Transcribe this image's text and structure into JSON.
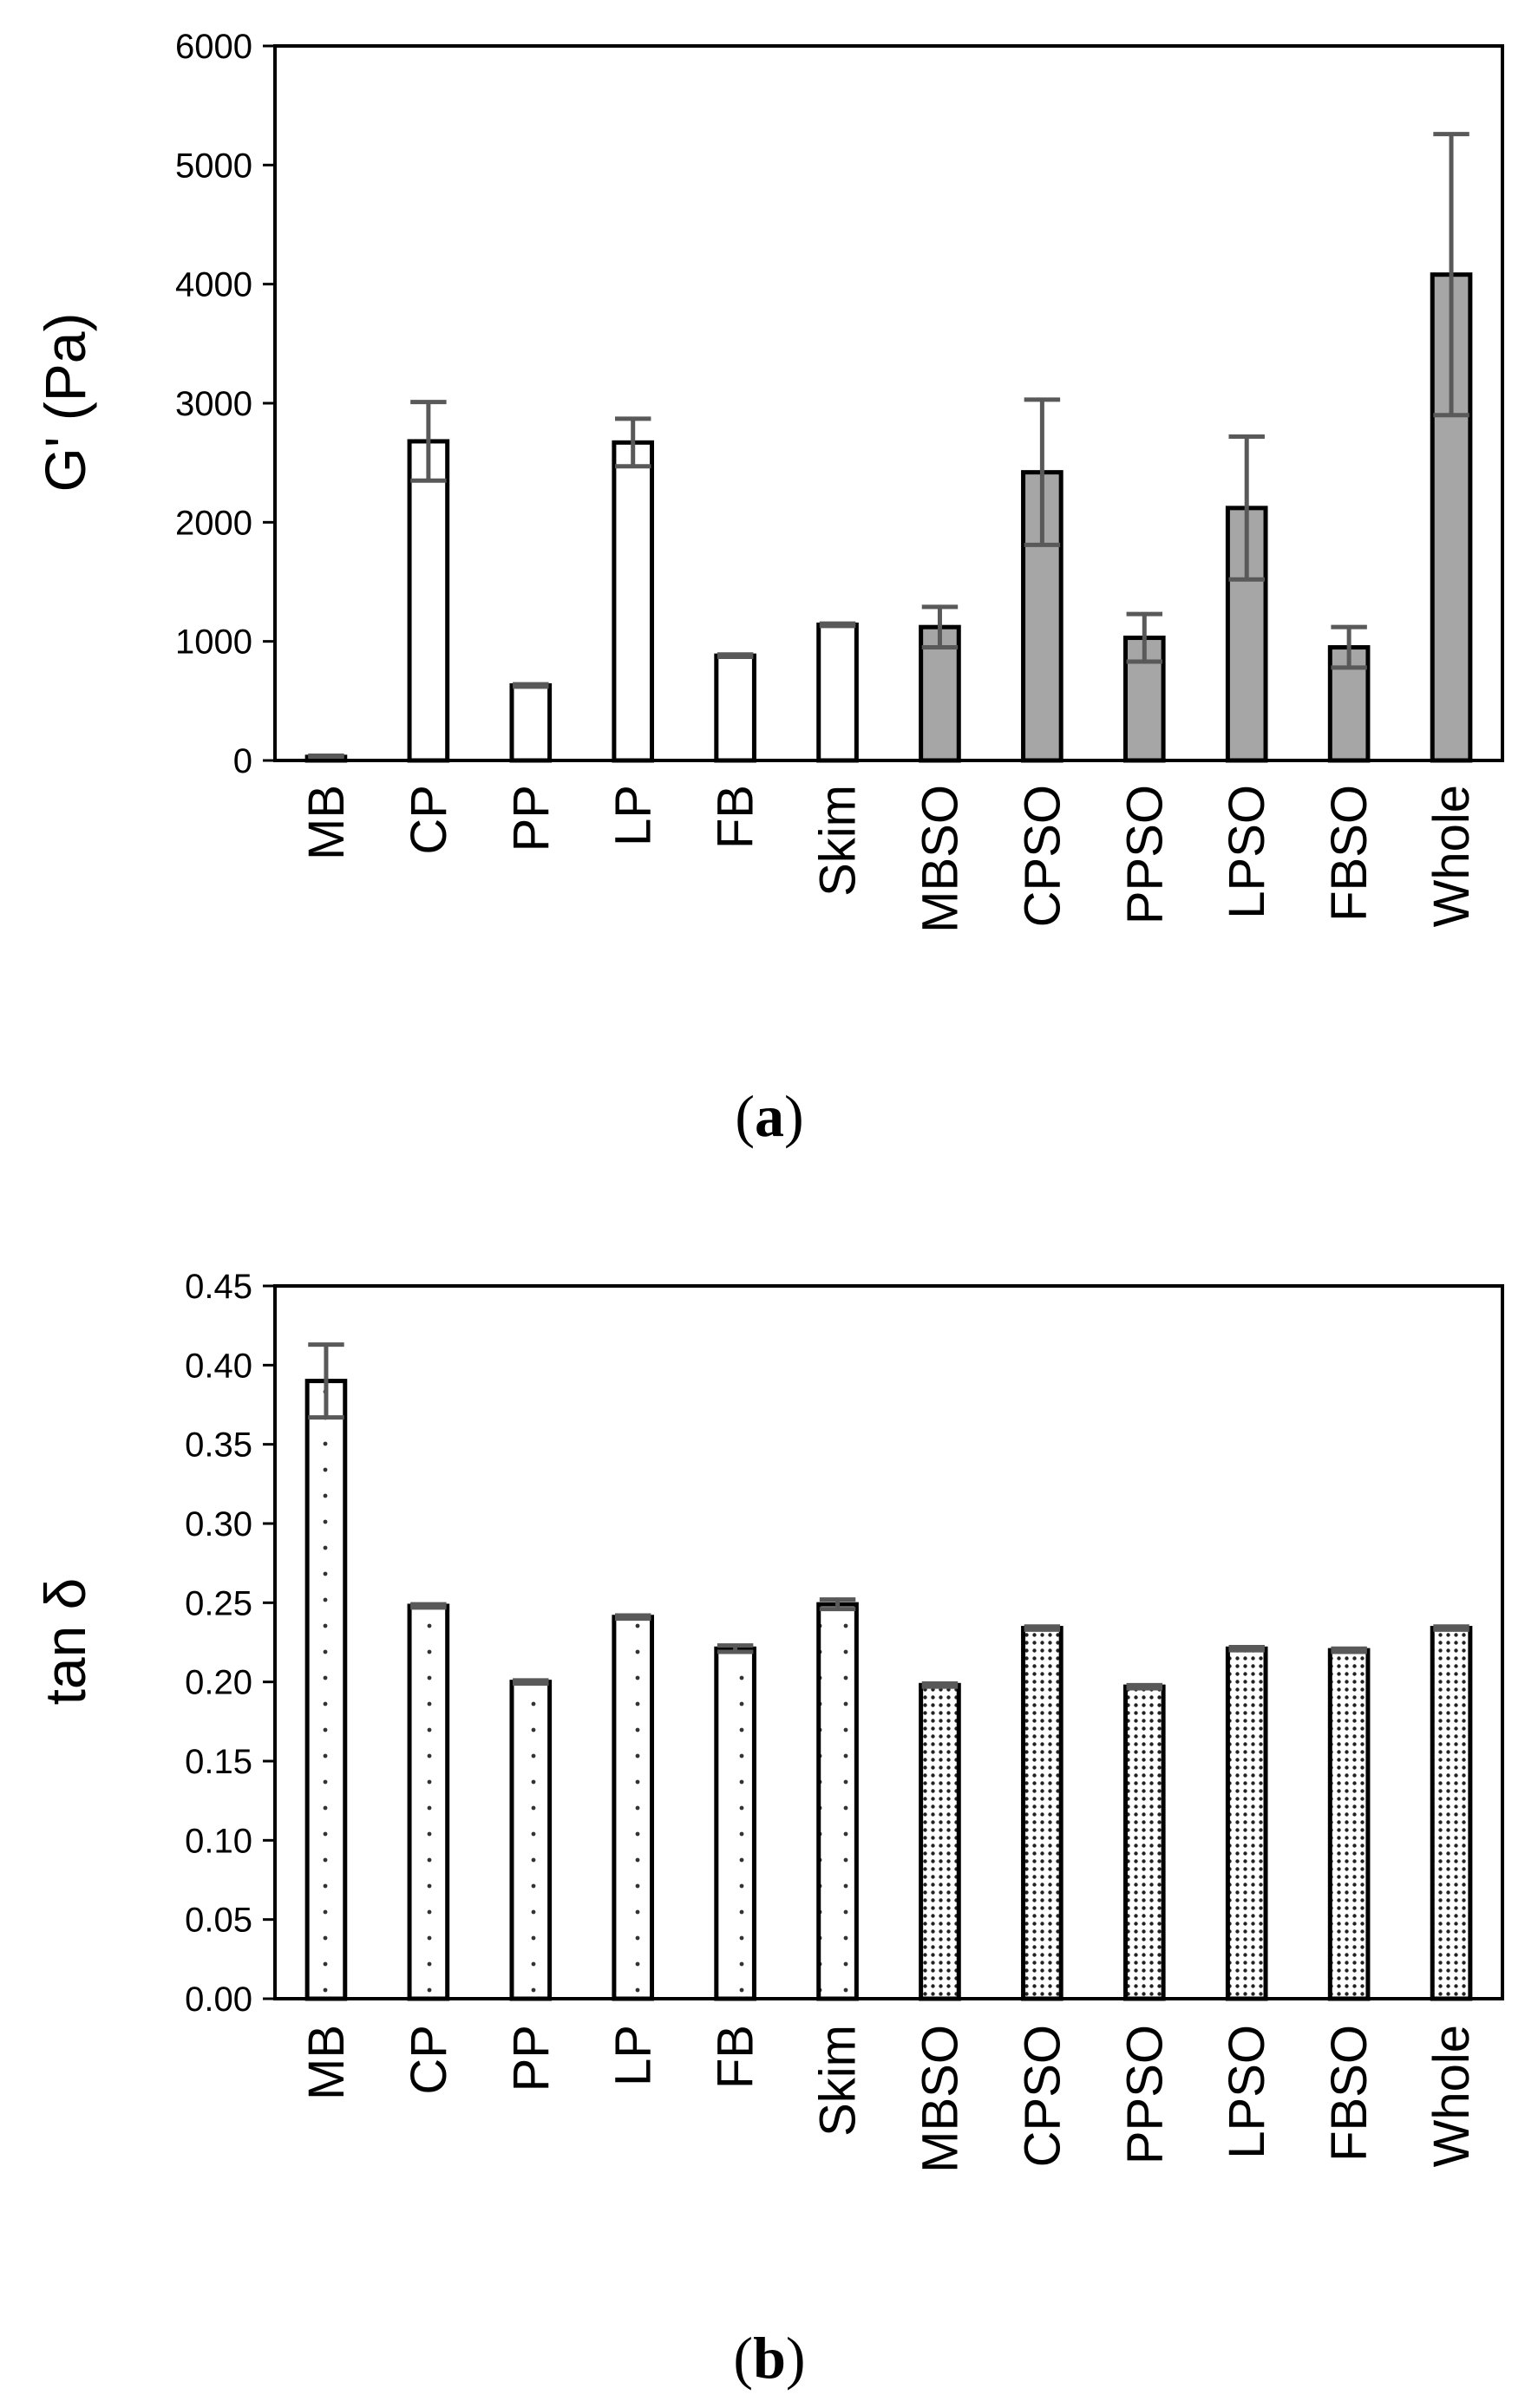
{
  "colors": {
    "axis": "#000000",
    "bar_outline": "#000000",
    "bar_fill_white": "#ffffff",
    "bar_fill_gray": "#a6a6a6",
    "error_bar": "#595959"
  },
  "chart_data": [
    {
      "type": "bar",
      "panel_label": {
        "open": "(",
        "letter": "a",
        "close": ")"
      },
      "title": "",
      "xlabel": "",
      "ylabel": "G' (Pa)",
      "ylim": [
        0,
        6000
      ],
      "yticks": [
        0,
        1000,
        2000,
        3000,
        4000,
        5000,
        6000
      ],
      "ytick_labels": [
        "0",
        "1000",
        "2000",
        "3000",
        "4000",
        "5000",
        "6000"
      ],
      "categories": [
        "MB",
        "CP",
        "PP",
        "LP",
        "FB",
        "Skim",
        "MBSO",
        "CPSO",
        "PPSO",
        "LPSO",
        "FBSO",
        "Whole"
      ],
      "values": [
        30,
        2680,
        630,
        2670,
        880,
        1140,
        1120,
        2420,
        1030,
        2120,
        950,
        4080
      ],
      "errors": [
        10,
        330,
        10,
        200,
        10,
        10,
        170,
        610,
        200,
        600,
        170,
        1180
      ],
      "fills": [
        "white",
        "white",
        "white",
        "white",
        "white",
        "white",
        "gray",
        "gray",
        "gray",
        "gray",
        "gray",
        "gray"
      ],
      "grid": false
    },
    {
      "type": "bar",
      "panel_label": {
        "open": "(",
        "letter": "b",
        "close": ")"
      },
      "title": "",
      "xlabel": "",
      "ylabel": "tan δ",
      "ylim": [
        0,
        0.45
      ],
      "yticks": [
        0,
        0.05,
        0.1,
        0.15,
        0.2,
        0.25,
        0.3,
        0.35,
        0.4,
        0.45
      ],
      "ytick_labels": [
        "0.00",
        "0.05",
        "0.10",
        "0.15",
        "0.20",
        "0.25",
        "0.30",
        "0.35",
        "0.40",
        "0.45"
      ],
      "categories": [
        "MB",
        "CP",
        "PP",
        "LP",
        "FB",
        "Skim",
        "MBSO",
        "CPSO",
        "PPSO",
        "LPSO",
        "FBSO",
        "Whole"
      ],
      "values": [
        0.39,
        0.248,
        0.2,
        0.241,
        0.221,
        0.249,
        0.198,
        0.234,
        0.197,
        0.221,
        0.22,
        0.234
      ],
      "errors": [
        0.023,
        0.001,
        0.001,
        0.001,
        0.002,
        0.003,
        0.001,
        0.001,
        0.001,
        0.001,
        0.001,
        0.001
      ],
      "fills": [
        "sparse-dots",
        "sparse-dots",
        "sparse-dots",
        "sparse-dots",
        "sparse-dots",
        "sparse-dots",
        "dense-dots",
        "dense-dots",
        "dense-dots",
        "dense-dots",
        "dense-dots",
        "dense-dots"
      ],
      "grid": false
    }
  ]
}
